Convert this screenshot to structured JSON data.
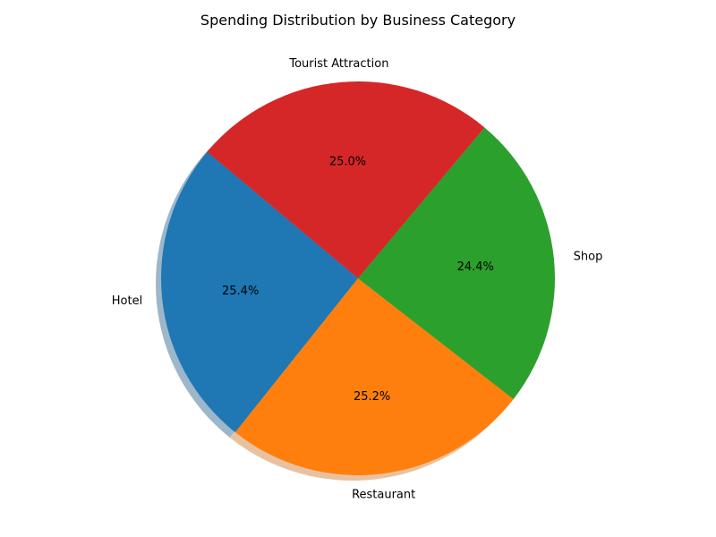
{
  "chart_data": {
    "type": "pie",
    "title": "Spending Distribution by Business Category",
    "categories": [
      "Hotel",
      "Restaurant",
      "Shop",
      "Tourist Attraction"
    ],
    "values": [
      25.4,
      25.2,
      24.4,
      25.0
    ],
    "percent_labels": [
      "25.4%",
      "25.2%",
      "24.4%",
      "25.0%"
    ],
    "colors": [
      "#1f77b4",
      "#ff7f0e",
      "#2ca02c",
      "#d62728"
    ],
    "start_angle_deg": 140,
    "direction": "counterclockwise",
    "shadow": true,
    "legend": "none"
  }
}
